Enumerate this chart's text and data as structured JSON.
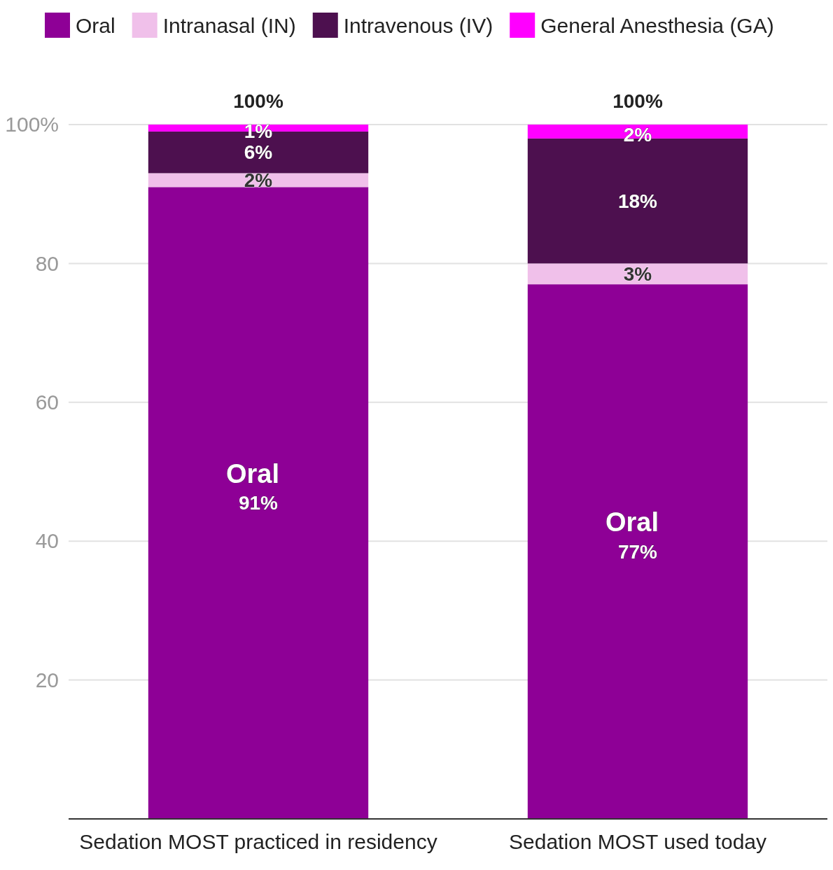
{
  "chart_data": {
    "type": "bar",
    "stacked": true,
    "categories": [
      "Sedation MOST practiced in residency",
      "Sedation MOST used today"
    ],
    "series": [
      {
        "name": "Oral",
        "color": "#8e0096",
        "values": [
          91,
          77
        ],
        "value_labels": [
          "91%",
          "77%"
        ]
      },
      {
        "name": "Intranasal (IN)",
        "color": "#f0c0ea",
        "values": [
          2,
          3
        ],
        "value_labels": [
          "2%",
          "3%"
        ]
      },
      {
        "name": "Intravenous (IV)",
        "color": "#4d104f",
        "values": [
          6,
          18
        ],
        "value_labels": [
          "6%",
          "18%"
        ]
      },
      {
        "name": "General Anesthesia (GA)",
        "color": "#ff00ff",
        "values": [
          1,
          2
        ],
        "value_labels": [
          "1%",
          "2%"
        ]
      }
    ],
    "totals": [
      "100%",
      "100%"
    ],
    "annotations": [
      "Oral",
      "Oral"
    ],
    "ylim": [
      0,
      100
    ],
    "yticks": [
      {
        "value": 20,
        "label": "20"
      },
      {
        "value": 40,
        "label": "40"
      },
      {
        "value": 60,
        "label": "60"
      },
      {
        "value": 80,
        "label": "80"
      },
      {
        "value": 100,
        "label": "100%"
      }
    ],
    "grid": "y",
    "legend": "top"
  }
}
